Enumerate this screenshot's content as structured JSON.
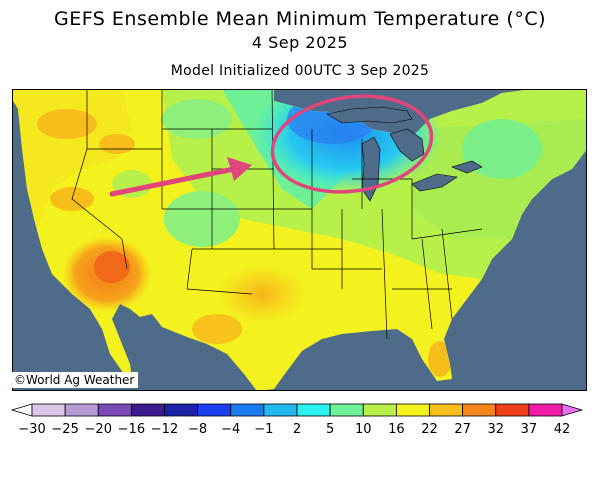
{
  "header": {
    "title": "GEFS Ensemble Mean Minimum Temperature (°C)",
    "date": "4 Sep 2025",
    "init": "Model Initialized 00UTC 3 Sep 2025"
  },
  "credit": "©World Ag Weather",
  "colorbar": {
    "labels": [
      "−30",
      "−25",
      "−20",
      "−16",
      "−12",
      "−8",
      "−4",
      "−1",
      "2",
      "5",
      "10",
      "16",
      "22",
      "27",
      "32",
      "37",
      "42"
    ],
    "colors": [
      "#ffffff",
      "#dcc6e8",
      "#b59ad6",
      "#7b4ab8",
      "#3c1c8c",
      "#1a22a8",
      "#1a3ef0",
      "#1a7cf0",
      "#23b8f0",
      "#2af0f0",
      "#6ef096",
      "#b8f04a",
      "#f4f21e",
      "#f7bd1a",
      "#f7861a",
      "#f0401a",
      "#f01ea6",
      "#e66ef0"
    ]
  },
  "map": {
    "annotation_circle_color": "#e0457c",
    "arrow_color": "#e0457c",
    "ocean_color": "#4f6b8a"
  }
}
